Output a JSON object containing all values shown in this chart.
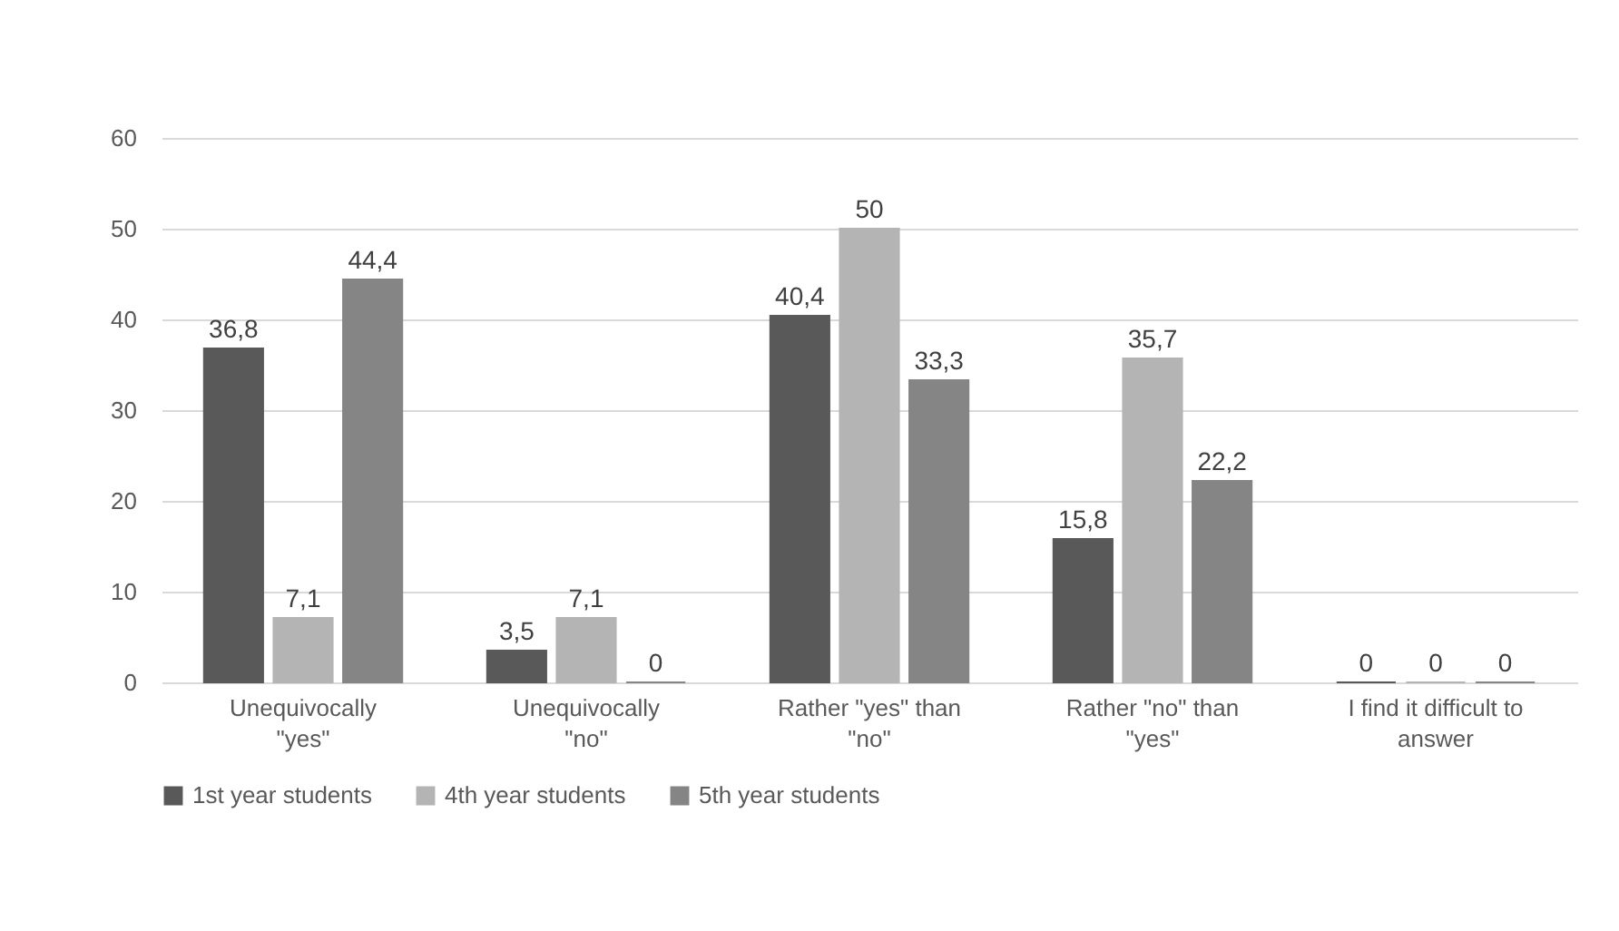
{
  "chart_data": {
    "type": "bar",
    "categories": [
      "Unequivocally \"yes\"",
      "Unequivocally \"no\"",
      "Rather \"yes\" than \"no\"",
      "Rather \"no\" than \"yes\"",
      "I find it difficult to answer"
    ],
    "series": [
      {
        "name": "1st year students",
        "color": "#595959",
        "values": [
          36.8,
          3.5,
          40.4,
          15.8,
          0
        ],
        "value_labels": [
          "36,8",
          "3,5",
          "40,4",
          "15,8",
          "0"
        ]
      },
      {
        "name": "4th year students",
        "color": "#b4b4b4",
        "values": [
          7.1,
          7.1,
          50,
          35.7,
          0
        ],
        "value_labels": [
          "7,1",
          "7,1",
          "50",
          "35,7",
          "0"
        ]
      },
      {
        "name": "5th year students",
        "color": "#858585",
        "values": [
          44.4,
          0,
          33.3,
          22.2,
          0
        ],
        "value_labels": [
          "44,4",
          "0",
          "33,3",
          "22,2",
          "0"
        ]
      }
    ],
    "ylim": [
      0,
      60
    ],
    "yticks": [
      0,
      10,
      20,
      30,
      40,
      50,
      60
    ],
    "grid": "y",
    "legend": "bottom"
  }
}
